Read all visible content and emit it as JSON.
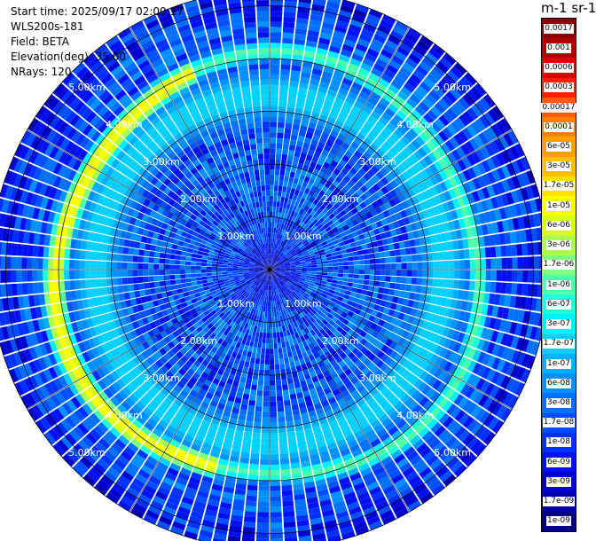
{
  "info": {
    "start_time": "Start time: 2025/09/17 02:00:17",
    "instrument": "WLS200s-181",
    "field": "Field: BETA",
    "elevation": "Elevation(deg): 35.00",
    "nrays": "NRays: 120"
  },
  "colorbar": {
    "unit": "m-1 sr-1",
    "labels": [
      "0.0017",
      "0.001",
      "0.0006",
      "0.0003",
      "0.00017",
      "0.0001",
      "6e-05",
      "3e-05",
      "1.7e-05",
      "1e-05",
      "6e-06",
      "3e-06",
      "1.7e-06",
      "1e-06",
      "6e-07",
      "3e-07",
      "1.7e-07",
      "1e-07",
      "6e-08",
      "3e-08",
      "1.7e-08",
      "1e-08",
      "6e-09",
      "3e-09",
      "1.7e-09",
      "1e-09"
    ],
    "colors": [
      "#8b0000",
      "#b00000",
      "#dd0000",
      "#ff2000",
      "#ff5a00",
      "#ff8000",
      "#ff9e00",
      "#ffbe00",
      "#ffe100",
      "#fbff00",
      "#d8ff1a",
      "#aaff4c",
      "#80ff80",
      "#4dffaa",
      "#1effd5",
      "#00f0ff",
      "#00d0ff",
      "#00b0ff",
      "#0090ff",
      "#0070ff",
      "#0050ff",
      "#0030ff",
      "#0010f0",
      "#0000d0",
      "#0000a8",
      "#000080"
    ]
  },
  "chart_data": {
    "type": "heatmap",
    "projection": "polar (PPI scan)",
    "field": "BETA",
    "elevation_deg": 35.0,
    "n_rays": 120,
    "range_rings_km": [
      1,
      2,
      3,
      4,
      5
    ],
    "ring_labels": [
      "1.00km",
      "2.00km",
      "3.00km",
      "4.00km",
      "5.00km"
    ],
    "max_range_km": 5.3,
    "color_scale": "log10",
    "value_range": [
      1e-09,
      0.0017
    ],
    "background_value": 2e-08,
    "features": [
      {
        "name": "aerosol ring",
        "radius_km": 4.0,
        "value": 1e-06,
        "strong_value": 1e-05,
        "strong_sector_deg": [
          195,
          340
        ]
      },
      {
        "name": "inner band",
        "radius_km": 3.3,
        "value": 2e-07
      },
      {
        "name": "near-site low signal",
        "radius_km": 1.2,
        "value": 3e-09
      }
    ]
  }
}
